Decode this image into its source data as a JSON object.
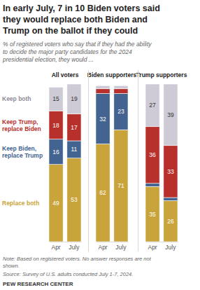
{
  "chart_data": {
    "type": "bar",
    "stacked": true,
    "data_labels": true,
    "tick_labels": "x",
    "title": [
      "In early July, 7 in 10 Biden voters said",
      "they would replace both Biden and",
      "Trump on the ballot if they could"
    ],
    "subtitle": [
      "% of registered voters who say that if they had the ability",
      "to decide the major party candidates for the 2024",
      "presidential election, they would ..."
    ],
    "note": [
      "Note: Based on registered voters. No answer responses are not",
      "shown."
    ],
    "source": "Source: Survey of U.S. adults conducted July 1-7, 2024.",
    "credit": "PEW RESEARCH CENTER",
    "ylim": [
      0,
      100
    ],
    "series": [
      {
        "name": "Replace both",
        "color": "#c9a43b"
      },
      {
        "name": "Keep Biden, replace Trump",
        "color": "#436491"
      },
      {
        "name": "Keep Trump, replace Biden",
        "color": "#b8302c"
      },
      {
        "name": "Keep both",
        "color": "#cfcbd6"
      }
    ],
    "panels": [
      {
        "title": "All voters",
        "categories": [
          "Apr",
          "July"
        ],
        "series": [
          {
            "values": [
              49,
              53
            ],
            "value_labels": [
              "49",
              "53"
            ]
          },
          {
            "values": [
              16,
              11
            ],
            "value_labels": [
              "16",
              "11"
            ]
          },
          {
            "values": [
              18,
              17
            ],
            "value_labels": [
              "18",
              "17"
            ]
          },
          {
            "values": [
              15,
              19
            ],
            "value_labels": [
              "15",
              "19"
            ]
          }
        ]
      },
      {
        "title": "Biden supporters",
        "categories": [
          "Apr",
          "July"
        ],
        "series": [
          {
            "values": [
              62,
              71
            ],
            "value_labels": [
              "62",
              "71"
            ]
          },
          {
            "values": [
              32,
              23
            ],
            "value_labels": [
              "32",
              "23"
            ]
          },
          {
            "values": [
              3,
              3
            ],
            "value_labels": [
              null,
              null
            ]
          },
          {
            "values": [
              2,
              2
            ],
            "value_labels": [
              null,
              null
            ]
          }
        ]
      },
      {
        "title": "Trump supporters",
        "categories": [
          "Apr",
          "July"
        ],
        "series": [
          {
            "values": [
              35,
              26
            ],
            "value_labels": [
              "35",
              "26"
            ]
          },
          {
            "values": [
              2,
              2
            ],
            "value_labels": [
              null,
              null
            ]
          },
          {
            "values": [
              36,
              33
            ],
            "value_labels": [
              "36",
              "33"
            ]
          },
          {
            "values": [
              27,
              39
            ],
            "value_labels": [
              "27",
              "39"
            ]
          }
        ]
      }
    ]
  }
}
